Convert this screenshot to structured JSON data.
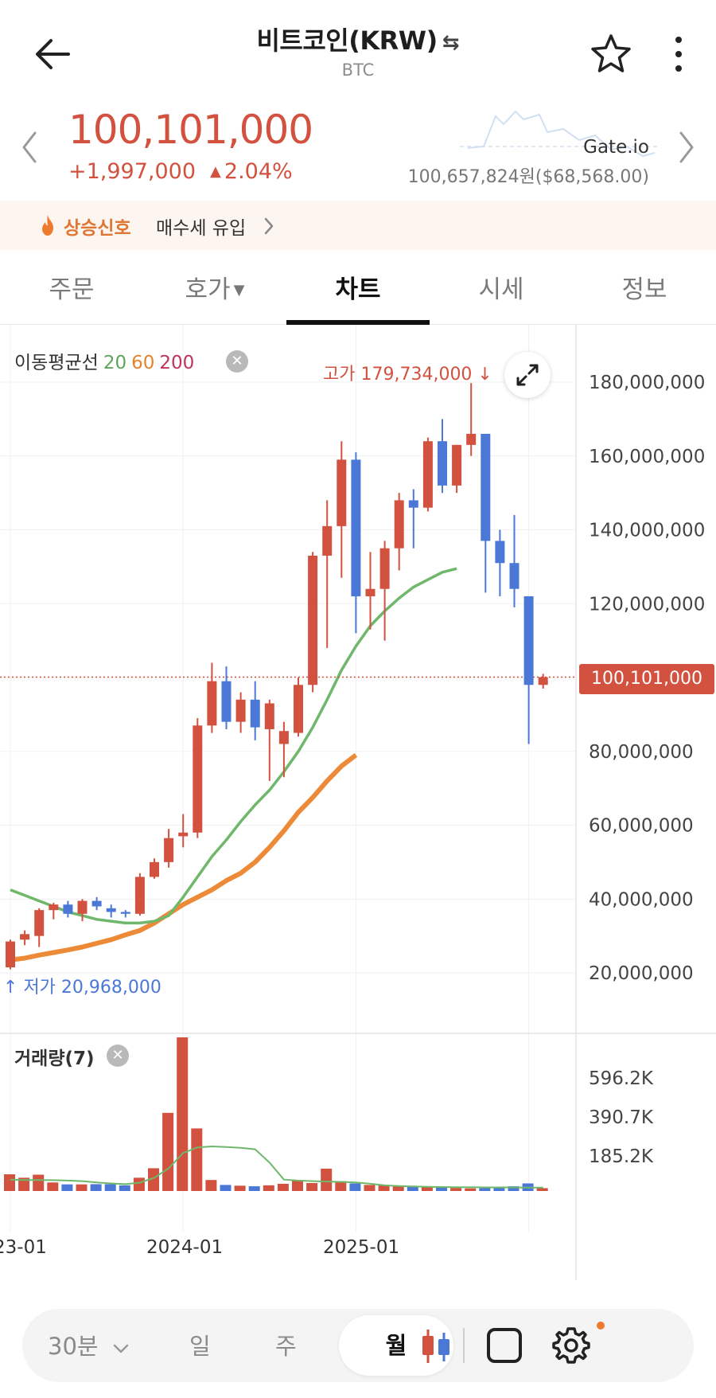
{
  "header": {
    "title": "비트코인(KRW)",
    "swap_symbol": "⇆",
    "subtitle": "BTC",
    "back_icon": "arrow-left-icon",
    "favorite_icon": "star-outline-icon",
    "more_icon": "more-vertical-icon"
  },
  "summary": {
    "price": "100,101,000",
    "change_amount": "+1,997,000",
    "change_arrow": "▲",
    "change_percent": "2.04%",
    "exchange_name": "Gate.io",
    "exchange_price": "100,657,824원($68,568.00)",
    "price_color": "#d2513f"
  },
  "signal": {
    "icon": "fire-icon",
    "label": "상승신호",
    "text": "매수세 유입"
  },
  "tabs": [
    {
      "label": "주문",
      "active": false
    },
    {
      "label": "호가",
      "active": false,
      "dropdown": "▼"
    },
    {
      "label": "차트",
      "active": true
    },
    {
      "label": "시세",
      "active": false
    },
    {
      "label": "정보",
      "active": false
    }
  ],
  "chart": {
    "ma_legend_label": "이동평균선",
    "ma_periods": [
      "20",
      "60",
      "200"
    ],
    "high_label": "고가 179,734,000",
    "low_label": "저가 20,968,000",
    "last_price_tag": "100,101,000",
    "volume_legend": "거래량(7)",
    "remove_icon": "✕",
    "expand_icon": "expand-icon",
    "colors": {
      "up": "#d2513f",
      "down": "#4b78d6",
      "ma20": "#6fb86b",
      "ma60": "#ec8a37"
    }
  },
  "chart_data": {
    "type": "candlestick",
    "title": "",
    "interval": "월",
    "price_axis": {
      "ticks": [
        "180,000,000",
        "160,000,000",
        "140,000,000",
        "120,000,000",
        "100,000,000",
        "80,000,000",
        "60,000,000",
        "40,000,000",
        "20,000,000"
      ],
      "ylim": [
        13000000,
        190000000
      ]
    },
    "x_tick_labels": [
      {
        "label": "23-01",
        "index": 0
      },
      {
        "label": "2024-01",
        "index": 12
      },
      {
        "label": "2025-01",
        "index": 24
      }
    ],
    "candles": [
      {
        "o": 21500000,
        "h": 29000000,
        "l": 20968000,
        "c": 28500000
      },
      {
        "o": 29000000,
        "h": 31500000,
        "l": 27500000,
        "c": 30500000
      },
      {
        "o": 30000000,
        "h": 37500000,
        "l": 27000000,
        "c": 37000000
      },
      {
        "o": 37000000,
        "h": 39000000,
        "l": 34500000,
        "c": 38500000
      },
      {
        "o": 38500000,
        "h": 39500000,
        "l": 35000000,
        "c": 36000000
      },
      {
        "o": 36000000,
        "h": 40000000,
        "l": 34000000,
        "c": 39500000
      },
      {
        "o": 39500000,
        "h": 40500000,
        "l": 37000000,
        "c": 38000000
      },
      {
        "o": 37500000,
        "h": 38500000,
        "l": 35000000,
        "c": 36500000
      },
      {
        "o": 36500000,
        "h": 37000000,
        "l": 35000000,
        "c": 36000000
      },
      {
        "o": 36000000,
        "h": 47000000,
        "l": 35500000,
        "c": 46000000
      },
      {
        "o": 46000000,
        "h": 51000000,
        "l": 45500000,
        "c": 50000000
      },
      {
        "o": 50000000,
        "h": 59000000,
        "l": 48500000,
        "c": 56500000
      },
      {
        "o": 57000000,
        "h": 63000000,
        "l": 54000000,
        "c": 58000000
      },
      {
        "o": 58000000,
        "h": 89000000,
        "l": 56500000,
        "c": 87000000
      },
      {
        "o": 87000000,
        "h": 104000000,
        "l": 85000000,
        "c": 99000000
      },
      {
        "o": 99000000,
        "h": 103000000,
        "l": 86000000,
        "c": 88000000
      },
      {
        "o": 88000000,
        "h": 96000000,
        "l": 85000000,
        "c": 94000000
      },
      {
        "o": 94000000,
        "h": 99000000,
        "l": 83000000,
        "c": 86500000
      },
      {
        "o": 86000000,
        "h": 94000000,
        "l": 72000000,
        "c": 93000000
      },
      {
        "o": 82000000,
        "h": 88000000,
        "l": 73000000,
        "c": 85500000
      },
      {
        "o": 85000000,
        "h": 100000000,
        "l": 84000000,
        "c": 98000000
      },
      {
        "o": 98000000,
        "h": 134000000,
        "l": 96000000,
        "c": 133000000
      },
      {
        "o": 133000000,
        "h": 148000000,
        "l": 108000000,
        "c": 141000000
      },
      {
        "o": 141000000,
        "h": 164000000,
        "l": 127000000,
        "c": 159000000
      },
      {
        "o": 159000000,
        "h": 161000000,
        "l": 112000000,
        "c": 122000000
      },
      {
        "o": 122000000,
        "h": 134000000,
        "l": 113000000,
        "c": 124000000
      },
      {
        "o": 124000000,
        "h": 137000000,
        "l": 110000000,
        "c": 135000000
      },
      {
        "o": 135000000,
        "h": 150000000,
        "l": 129000000,
        "c": 148000000
      },
      {
        "o": 148000000,
        "h": 151000000,
        "l": 135000000,
        "c": 146000000
      },
      {
        "o": 146000000,
        "h": 165000000,
        "l": 145000000,
        "c": 164000000
      },
      {
        "o": 164000000,
        "h": 170000000,
        "l": 150000000,
        "c": 152000000
      },
      {
        "o": 152000000,
        "h": 163000000,
        "l": 150000000,
        "c": 163000000
      },
      {
        "o": 163000000,
        "h": 179734000,
        "l": 160000000,
        "c": 166000000
      },
      {
        "o": 166000000,
        "h": 166000000,
        "l": 123000000,
        "c": 137000000
      },
      {
        "o": 137000000,
        "h": 140000000,
        "l": 122000000,
        "c": 131000000
      },
      {
        "o": 131000000,
        "h": 144000000,
        "l": 119000000,
        "c": 124000000
      },
      {
        "o": 122000000,
        "h": 122000000,
        "l": 82000000,
        "c": 98000000
      },
      {
        "o": 98000000,
        "h": 101000000,
        "l": 97000000,
        "c": 100101000
      }
    ],
    "ma20": [
      42500000,
      41000000,
      39500000,
      38000000,
      36500000,
      35500000,
      34500000,
      34000000,
      33500000,
      33500000,
      34000000,
      35500000,
      40500000,
      46000000,
      51500000,
      56000000,
      61000000,
      65500000,
      69500000,
      74500000,
      80000000,
      86500000,
      94000000,
      102000000,
      108500000,
      114000000,
      118000000,
      121500000,
      124500000,
      126500000,
      128500000,
      129500000
    ],
    "ma20_start_index": 0,
    "ma60": [
      23500000,
      24000000,
      24800000,
      25500000,
      26200000,
      27000000,
      28000000,
      29000000,
      30300000,
      31500000,
      33500000,
      36000000,
      38500000,
      40500000,
      42500000,
      45000000,
      47000000,
      50000000,
      54000000,
      58500000,
      63500000,
      67500000,
      72000000,
      76000000,
      79000000
    ],
    "ma60_start_index": 0,
    "volume_axis": {
      "ticks": [
        "596.2K",
        "390.7K",
        "185.2K"
      ]
    },
    "volume": [
      88000,
      70000,
      86000,
      45000,
      35000,
      35000,
      36000,
      36000,
      30000,
      70000,
      120000,
      412000,
      810000,
      330000,
      58000,
      32000,
      28000,
      25000,
      30000,
      38000,
      55000,
      42000,
      118000,
      52000,
      40000,
      32000,
      30000,
      29000,
      26000,
      22000,
      20000,
      16000,
      14000,
      15000,
      20000,
      25000,
      40000,
      15000
    ],
    "volume_ma": [
      60000,
      58000,
      58000,
      57000,
      55000,
      52000,
      45000,
      40000,
      36000,
      44000,
      70000,
      120000,
      200000,
      230000,
      235000,
      232000,
      228000,
      220000,
      150000,
      60000,
      55000,
      52000,
      50000,
      48000,
      45000,
      38000,
      30000,
      26000,
      24000,
      22000,
      21000,
      20000,
      20000,
      19000,
      19000,
      19000,
      18000,
      18000
    ]
  },
  "toolbar": {
    "interval_dropdown": "30분",
    "interval_dropdown_icon": "chevron-down-icon",
    "day": "일",
    "week": "주",
    "month": "월",
    "candle_icon": "candlestick-icon",
    "drawing_icon": "square-icon",
    "settings_icon": "gear-icon"
  }
}
